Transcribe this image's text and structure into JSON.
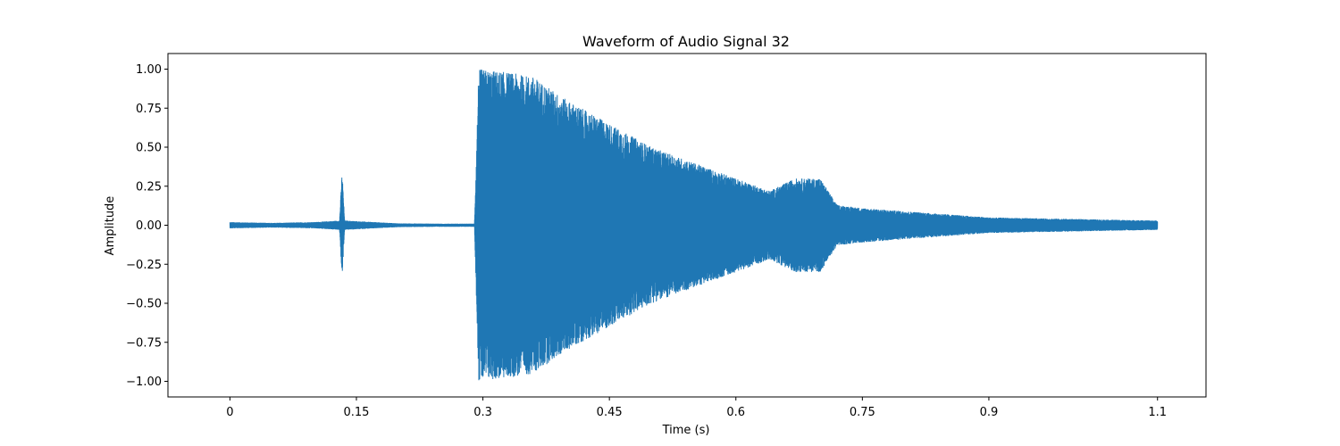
{
  "chart_data": {
    "type": "line",
    "title": "Waveform of Audio Signal 32",
    "xlabel": "Time (s)",
    "ylabel": "Amplitude",
    "xlim": [
      -0.0735,
      1.1575
    ],
    "ylim": [
      -1.1,
      1.1
    ],
    "x_ticks": [
      0,
      0.15,
      0.3,
      0.45,
      0.6,
      0.75,
      0.9,
      1.1
    ],
    "x_tick_labels": [
      "0",
      "0.15",
      "0.3",
      "0.45",
      "0.6",
      "0.75",
      "0.9",
      "1.1"
    ],
    "y_ticks": [
      1.0,
      0.75,
      0.5,
      0.25,
      0.0,
      -0.25,
      -0.5,
      -0.75,
      -1.0
    ],
    "y_tick_labels": [
      "1.00",
      "0.75",
      "0.50",
      "0.25",
      "0.00",
      "−0.25",
      "−0.50",
      "−0.75",
      "−1.00"
    ],
    "grid": false,
    "color": "#1f77b4",
    "series": [
      {
        "duration": 1.1,
        "envelope": [
          [
            0.0,
            0.02
          ],
          [
            0.05,
            0.015
          ],
          [
            0.1,
            0.02
          ],
          [
            0.13,
            0.03
          ],
          [
            0.133,
            0.35
          ],
          [
            0.136,
            0.03
          ],
          [
            0.2,
            0.012
          ],
          [
            0.25,
            0.01
          ],
          [
            0.29,
            0.01
          ],
          [
            0.295,
            1.0
          ],
          [
            0.33,
            0.98
          ],
          [
            0.36,
            0.95
          ],
          [
            0.4,
            0.8
          ],
          [
            0.45,
            0.65
          ],
          [
            0.5,
            0.5
          ],
          [
            0.55,
            0.4
          ],
          [
            0.6,
            0.3
          ],
          [
            0.64,
            0.22
          ],
          [
            0.67,
            0.3
          ],
          [
            0.7,
            0.3
          ],
          [
            0.72,
            0.13
          ],
          [
            0.75,
            0.11
          ],
          [
            0.8,
            0.09
          ],
          [
            0.9,
            0.05
          ],
          [
            1.0,
            0.04
          ],
          [
            1.1,
            0.03
          ]
        ]
      }
    ]
  }
}
